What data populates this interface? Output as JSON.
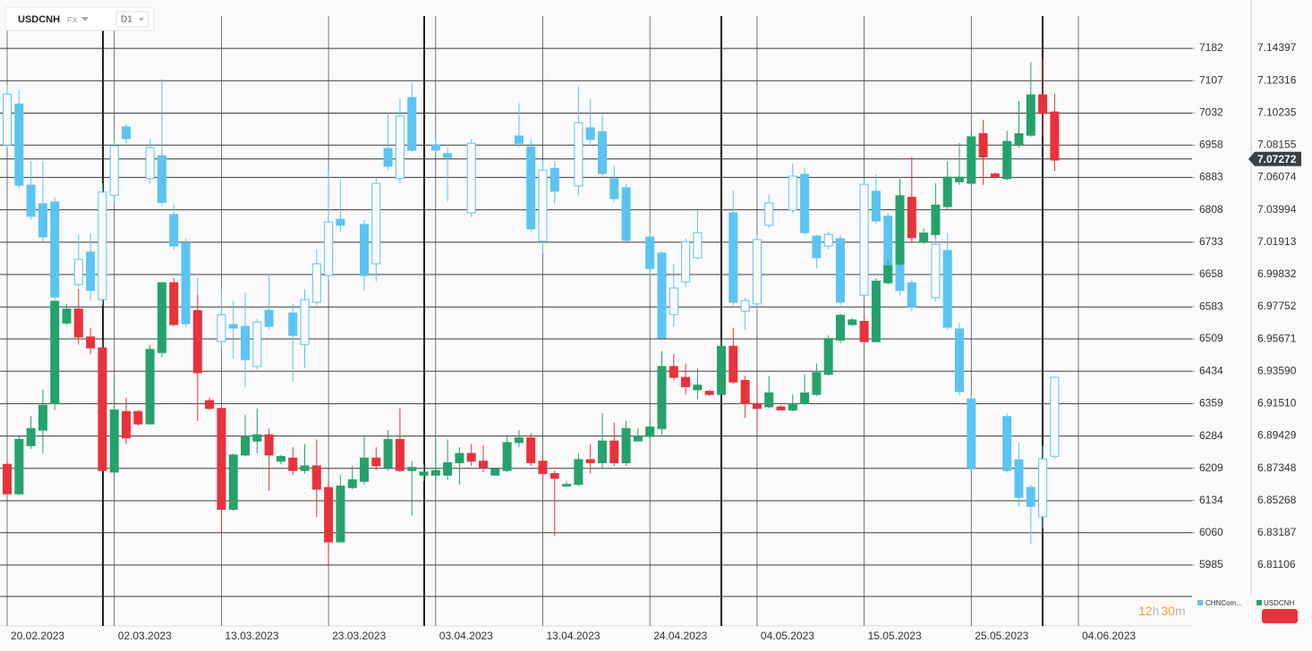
{
  "chart_data": {
    "type": "candlestick",
    "header": {
      "symbol": "USDCNH",
      "market": "FX",
      "timeframe": "D1"
    },
    "categories": [
      "20.02.2023",
      null,
      null,
      null,
      null,
      null,
      null,
      null,
      null,
      "02.03.2023",
      null,
      null,
      null,
      null,
      null,
      null,
      null,
      null,
      "13.03.2023",
      null,
      null,
      null,
      null,
      null,
      null,
      null,
      null,
      "23.03.2023",
      null,
      null,
      null,
      null,
      null,
      null,
      null,
      null,
      "03.04.2023",
      null,
      null,
      null,
      null,
      null,
      null,
      null,
      null,
      "13.04.2023",
      null,
      null,
      null,
      null,
      null,
      null,
      null,
      null,
      "24.04.2023",
      null,
      null,
      null,
      null,
      null,
      null,
      null,
      null,
      "04.05.2023",
      null,
      null,
      null,
      null,
      null,
      null,
      null,
      null,
      "15.05.2023",
      null,
      null,
      null,
      null,
      null,
      null,
      null,
      null,
      "25.05.2023",
      null,
      null,
      null,
      null,
      null,
      null,
      null,
      null,
      "04.06.2023"
    ],
    "ylim": [
      5844,
      7294
    ],
    "yticks": [
      7182,
      7107,
      7032,
      6958,
      6883,
      6808,
      6733,
      6658,
      6583,
      6509,
      6434,
      6359,
      6284,
      6209,
      6134,
      6060,
      5985
    ],
    "y2lim": [
      6.77185,
      7.17512
    ],
    "y2ticks": [
      7.14397,
      7.12316,
      7.10235,
      7.08155,
      7.06074,
      7.03994,
      7.01913,
      6.99832,
      6.97752,
      6.95671,
      {
        "value": 6.9359,
        "label": "6.93590"
      },
      {
        "value": 6.9151,
        "label": "6.91510"
      },
      6.89429,
      6.87348,
      6.85268,
      6.83187,
      6.81106
    ],
    "grid": true,
    "last_price": 7.07272,
    "countdown": {
      "hours": "12",
      "hours_unit": "h",
      "minutes": "30",
      "minutes_unit": "m"
    },
    "series": [
      {
        "name": "CHNCom...",
        "axis": "y",
        "up_color": "#5bc4f2",
        "down_color": "#5bc4f2",
        "hollow_up": true,
        "open": [
          6958,
          7053,
          6865,
          6822,
          6826,
          null,
          6635,
          6710,
          6600,
          6842,
          7000,
          null,
          6880,
          6933,
          6797,
          6730,
          6571,
          null,
          6503,
          6542,
          6538,
          6445,
          6575,
          null,
          6569,
          6496,
          6594,
          6656,
          6786,
          null,
          6774,
          6683,
          6950,
          6880,
          7068,
          null,
          6958,
          6938,
          null,
          6801,
          null,
          null,
          null,
          6979,
          6954,
          6735,
          6904,
          null,
          6863,
          6998,
          6989,
          6880,
          6859,
          null,
          6745,
          6708,
          6565,
          6641,
          6697,
          null,
          null,
          6801,
          6573,
          6590,
          6772,
          null,
          6807,
          6890,
          6747,
          6724,
          6741,
          null,
          6610,
          6851,
          6793,
          6693,
          6639,
          null,
          6604,
          6714,
          6532,
          6370,
          null,
          null,
          6329,
          6229,
          6165,
          6097,
          6237,
          null,
          null
        ],
        "high": [
          7097,
          7086,
          6921,
          6921,
          6837,
          null,
          6750,
          6754,
          6869,
          6972,
          7008,
          null,
          6972,
          7111,
          6820,
          6742,
          6650,
          null,
          6624,
          6597,
          6618,
          6556,
          6660,
          null,
          6591,
          6624,
          6716,
          6900,
          6879,
          null,
          6785,
          6883,
          7034,
          7065,
          7103,
          null,
          6972,
          6952,
          null,
          6972,
          null,
          null,
          null,
          7055,
          6972,
          6921,
          6921,
          null,
          7094,
          7065,
          7028,
          6910,
          6869,
          null,
          6754,
          6712,
          6683,
          6742,
          6806,
          null,
          null,
          6853,
          6604,
          6750,
          6844,
          null,
          6915,
          6906,
          6750,
          6758,
          6750,
          null,
          6879,
          6890,
          6800,
          6733,
          6646,
          null,
          6762,
          6754,
          6546,
          6380,
          null,
          null,
          6336,
          6268,
          6171,
          6261,
          6422,
          null,
          null
        ],
        "low": [
          6952,
          6858,
          6785,
          6733,
          6597,
          null,
          6629,
          6597,
          6587,
          6820,
          6962,
          null,
          6869,
          6816,
          6716,
          6536,
          6463,
          null,
          6484,
          6463,
          6397,
          6438,
          6530,
          null,
          6411,
          6442,
          6587,
          6646,
          6758,
          null,
          6621,
          6642,
          6900,
          6869,
          6941,
          null,
          6941,
          6827,
          null,
          6791,
          null,
          null,
          null,
          6952,
          6758,
          6708,
          6820,
          null,
          6842,
          6962,
          6883,
          6825,
          6733,
          null,
          6654,
          6505,
          6538,
          6629,
          6693,
          null,
          null,
          6587,
          6530,
          6577,
          6766,
          null,
          6800,
          6750,
          6672,
          6716,
          6587,
          null,
          6606,
          6776,
          6635,
          6610,
          6573,
          null,
          6596,
          6530,
          6378,
          6205,
          null,
          null,
          6199,
          6120,
          6033,
          6070,
          6231,
          null,
          null
        ],
        "close": [
          7076,
          6865,
          6793,
          6745,
          6606,
          null,
          6693,
          6621,
          6849,
          6956,
          6973,
          null,
          6952,
          6825,
          6724,
          6544,
          6511,
          null,
          6565,
          6534,
          6461,
          6548,
          6538,
          null,
          6517,
          6600,
          6683,
          6780,
          6772,
          null,
          6656,
          6869,
          6909,
          7025,
          6946,
          null,
          6946,
          6929,
          null,
          6962,
          null,
          null,
          null,
          6962,
          6764,
          6900,
          6851,
          null,
          7010,
          6971,
          6892,
          6834,
          6737,
          null,
          6672,
          6511,
          6627,
          6734,
          6755,
          null,
          null,
          6594,
          6598,
          6739,
          6824,
          null,
          6886,
          6755,
          6697,
          6751,
          6594,
          null,
          6867,
          6782,
          6639,
          6621,
          6583,
          null,
          6728,
          6536,
          6387,
          6210,
          null,
          null,
          6204,
          6142,
          6121,
          6231,
          6420,
          null,
          null
        ]
      },
      {
        "name": "USDCNH",
        "axis": "y2",
        "up_color": "#25a26c",
        "down_color": "#e8323c",
        "hollow_up": false,
        "open": [
          6.876,
          6.857,
          6.888,
          6.898,
          6.915,
          6.967,
          6.976,
          6.958,
          6.951,
          6.871,
          6.91,
          6.91,
          6.902,
          6.948,
          6.993,
          null,
          6.975,
          6.917,
          6.912,
          6.847,
          6.882,
          6.891,
          6.895,
          6.878,
          6.88,
          6.872,
          6.875,
          6.861,
          6.826,
          6.861,
          6.865,
          6.88,
          6.874,
          6.892,
          6.872,
          6.869,
          6.869,
          6.869,
          6.877,
          6.883,
          6.878,
          6.869,
          6.872,
          6.89,
          6.893,
          6.878,
          6.87,
          6.862,
          6.863,
          6.879,
          6.877,
          6.891,
          6.877,
          6.891,
          6.894,
          6.899,
          6.939,
          6.932,
          6.924,
          6.923,
          6.921,
          6.952,
          6.93,
          6.915,
          6.913,
          6.913,
          6.911,
          6.915,
          6.921,
          6.934,
          6.956,
          6.966,
          6.968,
          6.955,
          6.993,
          7.005,
          7.048,
          7.019,
          7.024,
          7.042,
          7.058,
          7.057,
          7.089,
          7.063,
          7.06,
          7.082,
          7.088,
          7.114,
          7.103,
          null,
          null
        ],
        "high": [
          6.878,
          6.894,
          6.907,
          6.924,
          6.981,
          6.979,
          6.989,
          6.964,
          6.956,
          6.933,
          6.919,
          6.911,
          6.953,
          6.993,
          6.996,
          null,
          6.985,
          6.919,
          6.912,
          6.883,
          6.908,
          6.912,
          6.899,
          6.882,
          6.887,
          6.889,
          6.892,
          6.865,
          6.869,
          6.875,
          6.895,
          6.887,
          6.898,
          6.912,
          6.878,
          6.876,
          6.892,
          6.892,
          6.887,
          6.889,
          6.888,
          6.874,
          6.895,
          6.898,
          6.896,
          6.881,
          6.872,
          6.865,
          6.883,
          6.889,
          6.909,
          6.903,
          6.904,
          6.899,
          6.904,
          6.949,
          6.947,
          6.941,
          6.938,
          6.924,
          6.956,
          6.964,
          6.933,
          6.928,
          6.933,
          6.914,
          6.921,
          6.934,
          6.941,
          6.959,
          6.973,
          6.97,
          6.972,
          6.996,
          7.007,
          7.06,
          7.074,
          7.028,
          7.057,
          7.071,
          7.083,
          7.09,
          7.098,
          7.064,
          7.091,
          7.11,
          7.135,
          7.138,
          7.115,
          null,
          null
        ],
        "low": [
          6.856,
          6.856,
          6.886,
          6.883,
          6.911,
          6.966,
          6.953,
          6.947,
          6.872,
          6.869,
          6.889,
          6.901,
          6.902,
          6.945,
          6.965,
          null,
          6.904,
          6.911,
          6.832,
          6.846,
          6.881,
          6.883,
          6.859,
          6.876,
          6.869,
          6.87,
          6.842,
          6.811,
          6.826,
          6.86,
          6.863,
          6.872,
          6.872,
          6.871,
          6.843,
          6.865,
          6.865,
          6.866,
          6.863,
          6.875,
          6.871,
          6.869,
          6.871,
          6.887,
          6.875,
          6.866,
          6.83,
          6.862,
          6.862,
          6.87,
          6.873,
          6.875,
          6.875,
          6.891,
          6.892,
          6.895,
          6.93,
          6.921,
          6.918,
          6.92,
          6.921,
          6.928,
          6.906,
          6.896,
          6.912,
          6.911,
          6.91,
          6.914,
          6.92,
          6.933,
          6.954,
          6.965,
          6.954,
          6.955,
          6.992,
          7.004,
          7.019,
          7.018,
          7.022,
          7.04,
          7.056,
          7.055,
          7.056,
          7.06,
          7.059,
          7.08,
          7.087,
          7.087,
          7.065,
          null,
          null
        ],
        "close": [
          6.857,
          6.892,
          6.899,
          6.914,
          6.981,
          6.976,
          6.958,
          6.951,
          6.872,
          6.911,
          6.893,
          6.902,
          6.95,
          6.993,
          6.966,
          null,
          6.935,
          6.912,
          6.847,
          6.882,
          6.894,
          6.895,
          6.882,
          6.881,
          6.872,
          6.875,
          6.86,
          6.826,
          6.862,
          6.866,
          6.88,
          6.875,
          6.892,
          6.872,
          6.874,
          6.871,
          6.872,
          6.877,
          6.883,
          6.878,
          6.874,
          6.873,
          6.89,
          6.893,
          6.877,
          6.87,
          6.867,
          6.863,
          6.879,
          6.877,
          6.891,
          6.877,
          6.899,
          6.894,
          6.9,
          6.939,
          6.932,
          6.926,
          6.927,
          6.921,
          6.952,
          6.929,
          6.915,
          6.912,
          6.922,
          6.911,
          6.915,
          6.922,
          6.935,
          6.957,
          6.972,
          6.969,
          6.955,
          6.994,
          7.004,
          7.049,
          7.022,
          7.025,
          7.043,
          7.061,
          7.061,
          7.087,
          7.074,
          7.061,
          7.084,
          7.089,
          7.114,
          7.102,
          7.072,
          null,
          null
        ]
      }
    ]
  }
}
